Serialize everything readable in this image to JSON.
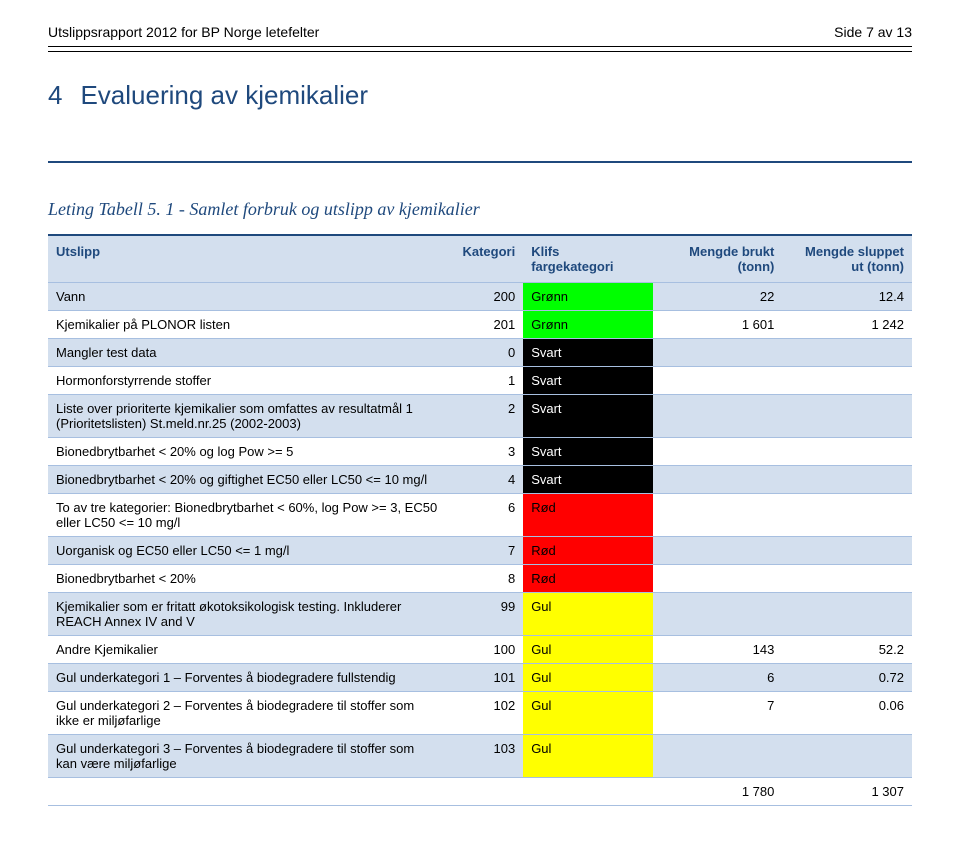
{
  "header": {
    "left": "Utslippsrapport 2012 for BP Norge letefelter",
    "right": "Side 7 av 13"
  },
  "section": {
    "number": "4",
    "title": "Evaluering av kjemikalier"
  },
  "caption": "Leting Tabell 5. 1 - Samlet forbruk og utslipp av kjemikalier",
  "columns": {
    "c1": "Utslipp",
    "c2": "Kategori",
    "c3": "Klifs fargekategori",
    "c4": "Mengde brukt (tonn)",
    "c5": "Mengde sluppet ut (tonn)"
  },
  "colors": {
    "green": "#00ff00",
    "black": "#000000",
    "blackText": "#ffffff",
    "red": "#ff0000",
    "yellow": "#ffff00",
    "zebra": "#d3dfee",
    "headerText": "#1f497d"
  },
  "rows": [
    {
      "label": "Vann",
      "kat": "200",
      "colorLabel": "Grønn",
      "colorKey": "green",
      "brukt": "22",
      "sluppet": "12.4",
      "zebra": true
    },
    {
      "label": "Kjemikalier på PLONOR listen",
      "kat": "201",
      "colorLabel": "Grønn",
      "colorKey": "green",
      "brukt": "1 601",
      "sluppet": "1 242",
      "zebra": false
    },
    {
      "label": "Mangler test data",
      "kat": "0",
      "colorLabel": "Svart",
      "colorKey": "black",
      "brukt": "",
      "sluppet": "",
      "zebra": true
    },
    {
      "label": "Hormonforstyrrende stoffer",
      "kat": "1",
      "colorLabel": "Svart",
      "colorKey": "black",
      "brukt": "",
      "sluppet": "",
      "zebra": false
    },
    {
      "label": "Liste over prioriterte kjemikalier som omfattes av resultatmål 1 (Prioritetslisten) St.meld.nr.25 (2002-2003)",
      "kat": "2",
      "colorLabel": "Svart",
      "colorKey": "black",
      "brukt": "",
      "sluppet": "",
      "zebra": true
    },
    {
      "label": "Bionedbrytbarhet < 20% og log Pow >= 5",
      "kat": "3",
      "colorLabel": "Svart",
      "colorKey": "black",
      "brukt": "",
      "sluppet": "",
      "zebra": false
    },
    {
      "label": "Bionedbrytbarhet < 20% og giftighet EC50 eller LC50 <= 10 mg/l",
      "kat": "4",
      "colorLabel": "Svart",
      "colorKey": "black",
      "brukt": "",
      "sluppet": "",
      "zebra": true
    },
    {
      "label": "To av tre kategorier: Bionedbrytbarhet < 60%, log Pow >= 3, EC50 eller LC50 <= 10 mg/l",
      "kat": "6",
      "colorLabel": "Rød",
      "colorKey": "red",
      "brukt": "",
      "sluppet": "",
      "zebra": false
    },
    {
      "label": "Uorganisk og EC50 eller LC50 <= 1 mg/l",
      "kat": "7",
      "colorLabel": "Rød",
      "colorKey": "red",
      "brukt": "",
      "sluppet": "",
      "zebra": true
    },
    {
      "label": "Bionedbrytbarhet < 20%",
      "kat": "8",
      "colorLabel": "Rød",
      "colorKey": "red",
      "brukt": "",
      "sluppet": "",
      "zebra": false
    },
    {
      "label": "Kjemikalier som er fritatt økotoksikologisk testing. Inkluderer REACH Annex IV and V",
      "kat": "99",
      "colorLabel": "Gul",
      "colorKey": "yellow",
      "brukt": "",
      "sluppet": "",
      "zebra": true
    },
    {
      "label": "Andre Kjemikalier",
      "kat": "100",
      "colorLabel": "Gul",
      "colorKey": "yellow",
      "brukt": "143",
      "sluppet": "52.2",
      "zebra": false
    },
    {
      "label": "Gul underkategori 1 – Forventes å biodegradere fullstendig",
      "kat": "101",
      "colorLabel": "Gul",
      "colorKey": "yellow",
      "brukt": "6",
      "sluppet": "0.72",
      "zebra": true
    },
    {
      "label": "Gul underkategori 2 – Forventes å biodegradere til stoffer som ikke er miljøfarlige",
      "kat": "102",
      "colorLabel": "Gul",
      "colorKey": "yellow",
      "brukt": "7",
      "sluppet": "0.06",
      "zebra": false
    },
    {
      "label": "Gul underkategori 3 – Forventes å biodegradere til stoffer som kan være miljøfarlige",
      "kat": "103",
      "colorLabel": "Gul",
      "colorKey": "yellow",
      "brukt": "",
      "sluppet": "",
      "zebra": true
    }
  ],
  "totals": {
    "brukt": "1 780",
    "sluppet": "1 307"
  }
}
